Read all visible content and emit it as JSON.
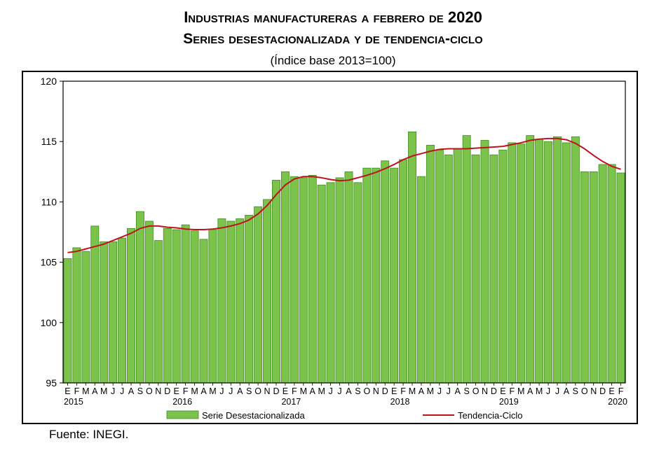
{
  "title_line1": "Industrias manufactureras a febrero de 2020",
  "title_line2": "Series desestacionalizada y de tendencia-ciclo",
  "title_line3": "(Índice base 2013=100)",
  "source": "Fuente: INEGI.",
  "colors": {
    "bar_fill": "#7CC34B",
    "bar_stroke": "#3E8E1E",
    "trend_line": "#C0121C"
  },
  "chart_data": {
    "type": "bar",
    "ylim": [
      95,
      120
    ],
    "yticks": [
      95,
      100,
      105,
      110,
      115,
      120
    ],
    "grid": false,
    "legend_position": "bottom",
    "month_labels": [
      "E",
      "F",
      "M",
      "A",
      "M",
      "J",
      "J",
      "A",
      "S",
      "O",
      "N",
      "D"
    ],
    "years": [
      "2015",
      "2016",
      "2017",
      "2018",
      "2019",
      "2020"
    ],
    "categories": [
      "2015-01",
      "2015-02",
      "2015-03",
      "2015-04",
      "2015-05",
      "2015-06",
      "2015-07",
      "2015-08",
      "2015-09",
      "2015-10",
      "2015-11",
      "2015-12",
      "2016-01",
      "2016-02",
      "2016-03",
      "2016-04",
      "2016-05",
      "2016-06",
      "2016-07",
      "2016-08",
      "2016-09",
      "2016-10",
      "2016-11",
      "2016-12",
      "2017-01",
      "2017-02",
      "2017-03",
      "2017-04",
      "2017-05",
      "2017-06",
      "2017-07",
      "2017-08",
      "2017-09",
      "2017-10",
      "2017-11",
      "2017-12",
      "2018-01",
      "2018-02",
      "2018-03",
      "2018-04",
      "2018-05",
      "2018-06",
      "2018-07",
      "2018-08",
      "2018-09",
      "2018-10",
      "2018-11",
      "2018-12",
      "2019-01",
      "2019-02",
      "2019-03",
      "2019-04",
      "2019-05",
      "2019-06",
      "2019-07",
      "2019-08",
      "2019-09",
      "2019-10",
      "2019-11",
      "2019-12",
      "2020-01",
      "2020-02"
    ],
    "series": [
      {
        "name": "Serie Desestacionalizada",
        "type": "bar",
        "values": [
          105.3,
          106.2,
          105.9,
          108.0,
          106.7,
          106.7,
          107.0,
          107.8,
          109.2,
          108.4,
          106.8,
          107.8,
          107.7,
          108.1,
          107.6,
          106.9,
          107.7,
          108.6,
          108.4,
          108.6,
          108.9,
          109.6,
          110.2,
          111.8,
          112.5,
          112.1,
          112.0,
          112.2,
          111.4,
          111.6,
          112.0,
          112.5,
          111.6,
          112.8,
          112.8,
          113.4,
          112.8,
          113.5,
          115.8,
          112.1,
          114.7,
          114.3,
          113.9,
          114.4,
          115.5,
          113.9,
          115.1,
          113.9,
          114.3,
          114.9,
          114.8,
          115.5,
          115.2,
          115.0,
          115.4,
          114.9,
          115.4,
          112.5,
          112.5,
          113.1,
          113.1,
          112.4
        ]
      },
      {
        "name": "Tendencia-Ciclo",
        "type": "line",
        "values": [
          105.8,
          105.9,
          106.1,
          106.3,
          106.5,
          106.8,
          107.1,
          107.4,
          107.8,
          108.0,
          108.0,
          107.9,
          107.85,
          107.75,
          107.7,
          107.7,
          107.75,
          107.85,
          108.0,
          108.2,
          108.5,
          109.0,
          109.7,
          110.6,
          111.4,
          111.9,
          112.1,
          112.1,
          112.0,
          111.85,
          111.75,
          111.8,
          112.0,
          112.2,
          112.45,
          112.75,
          113.1,
          113.5,
          113.8,
          114.0,
          114.2,
          114.35,
          114.4,
          114.4,
          114.4,
          114.45,
          114.5,
          114.55,
          114.6,
          114.75,
          114.9,
          115.1,
          115.2,
          115.25,
          115.25,
          115.15,
          114.85,
          114.4,
          113.85,
          113.35,
          112.95,
          112.7
        ]
      }
    ]
  }
}
